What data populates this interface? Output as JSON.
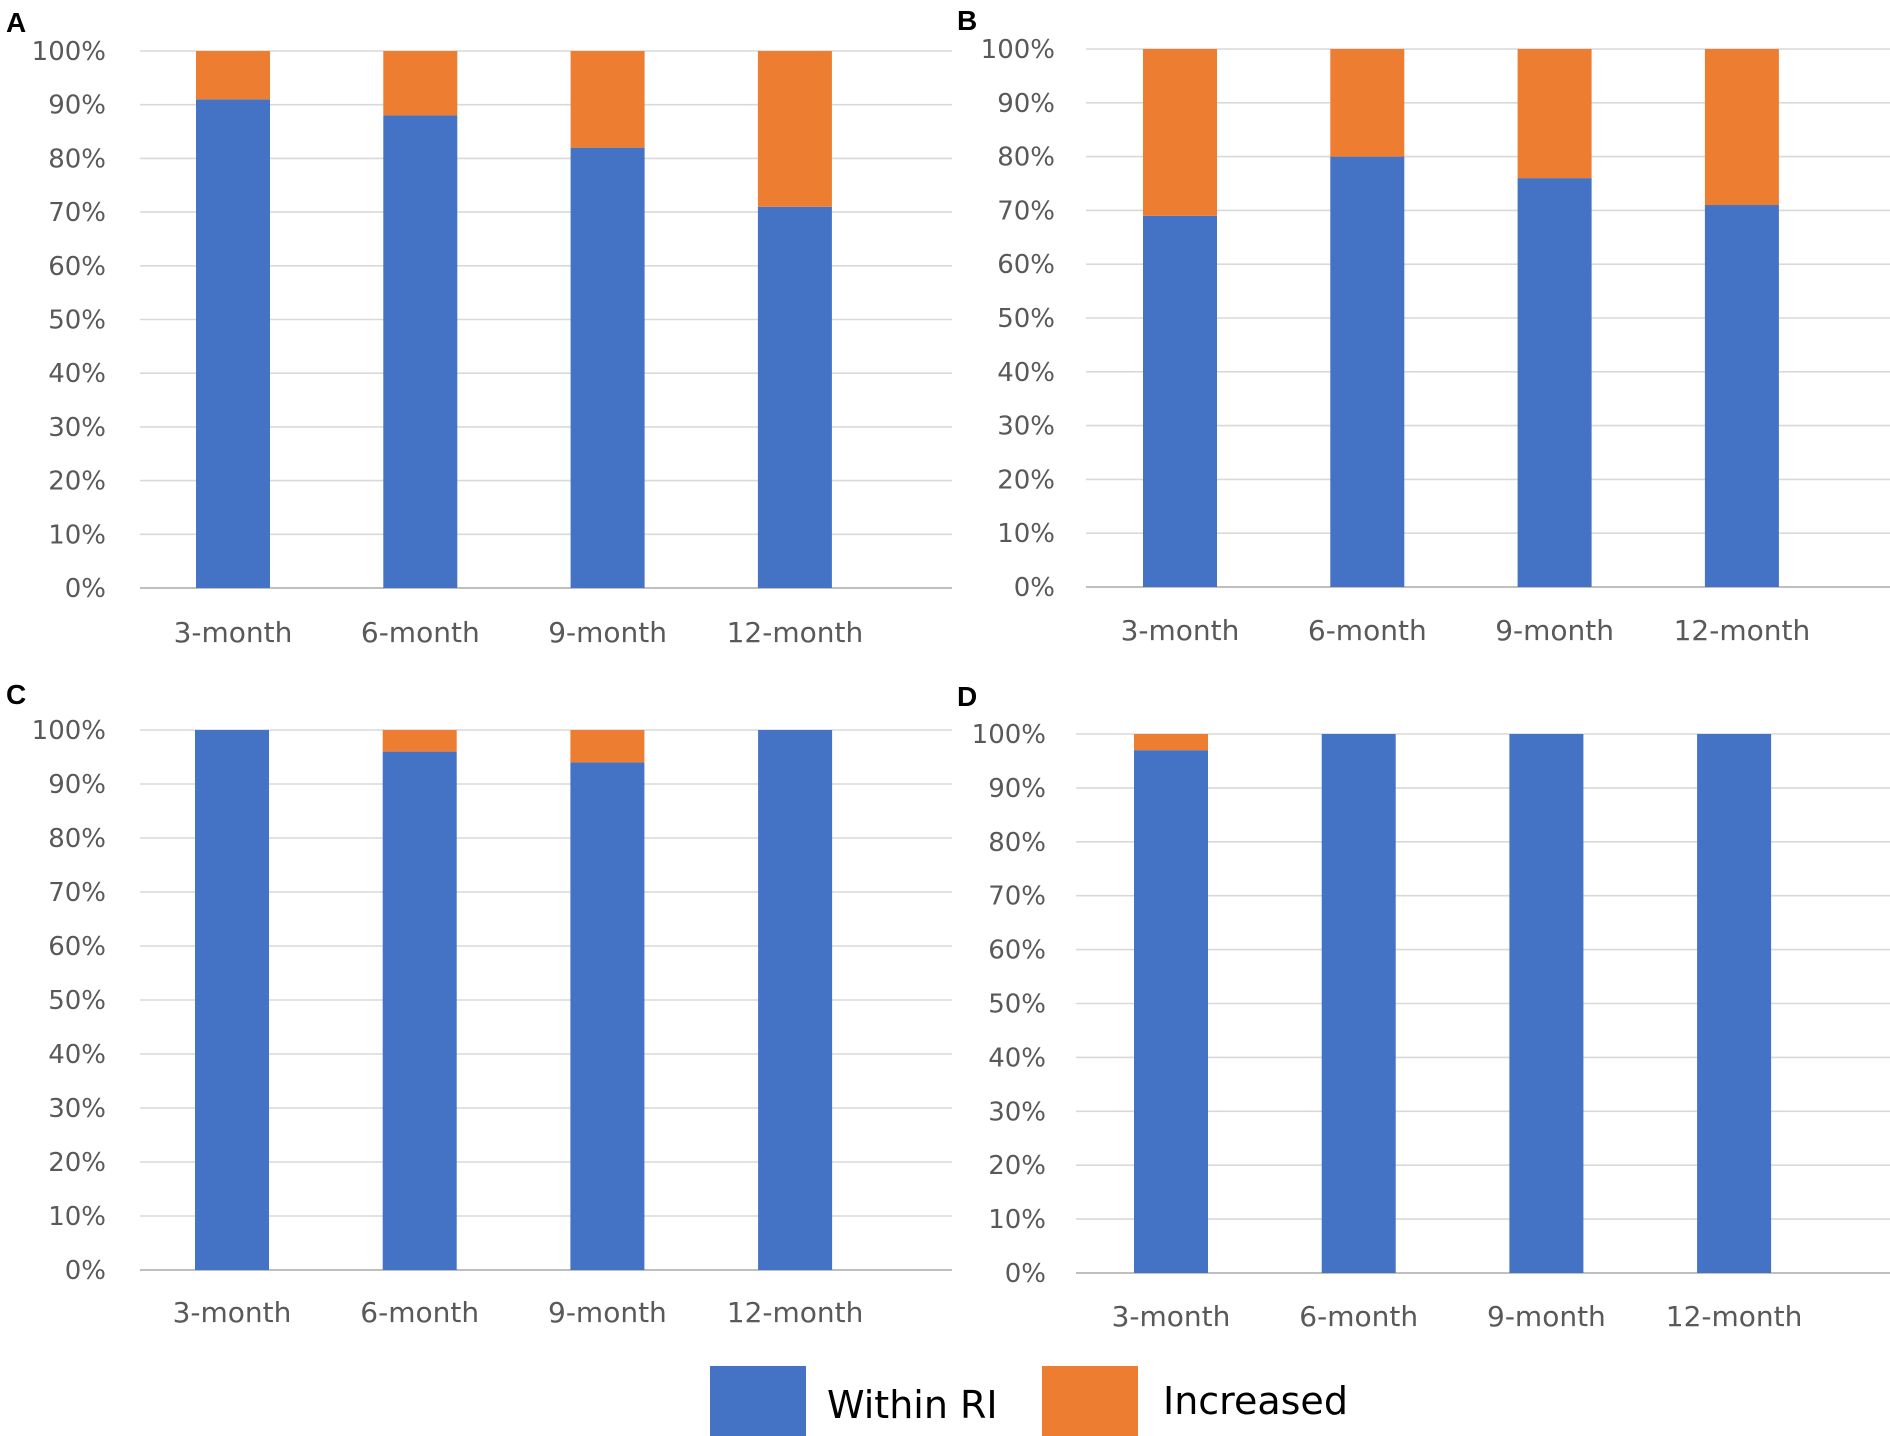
{
  "colors": {
    "within": "#4472C4",
    "increased": "#ED7D31",
    "grid": "#D9D9D9",
    "axis": "#BFBFBF",
    "tick_text": "#595959"
  },
  "legend": {
    "within_label": "Within RI",
    "increased_label": "Increased"
  },
  "chart_data": [
    {
      "panel": "A",
      "type": "bar",
      "stacked": true,
      "categories": [
        "3-month",
        "6-month",
        "9-month",
        "12-month"
      ],
      "series": [
        {
          "name": "Within RI",
          "values": [
            91,
            88,
            82,
            71
          ]
        },
        {
          "name": "Increased",
          "values": [
            9,
            12,
            18,
            29
          ]
        }
      ],
      "ylim": [
        0,
        100
      ],
      "yticks": [
        "0%",
        "10%",
        "20%",
        "30%",
        "40%",
        "50%",
        "60%",
        "70%",
        "80%",
        "90%",
        "100%"
      ],
      "grid": true,
      "legend": "bottom"
    },
    {
      "panel": "B",
      "type": "bar",
      "stacked": true,
      "categories": [
        "3-month",
        "6-month",
        "9-month",
        "12-month"
      ],
      "series": [
        {
          "name": "Within RI",
          "values": [
            69,
            80,
            76,
            71
          ]
        },
        {
          "name": "Increased",
          "values": [
            31,
            20,
            24,
            29
          ]
        }
      ],
      "ylim": [
        0,
        100
      ],
      "yticks": [
        "0%",
        "10%",
        "20%",
        "30%",
        "40%",
        "50%",
        "60%",
        "70%",
        "80%",
        "90%",
        "100%"
      ],
      "grid": true,
      "legend": "bottom"
    },
    {
      "panel": "C",
      "type": "bar",
      "stacked": true,
      "categories": [
        "3-month",
        "6-month",
        "9-month",
        "12-month"
      ],
      "series": [
        {
          "name": "Within RI",
          "values": [
            100,
            96,
            94,
            100
          ]
        },
        {
          "name": "Increased",
          "values": [
            0,
            4,
            6,
            0
          ]
        }
      ],
      "ylim": [
        0,
        100
      ],
      "yticks": [
        "0%",
        "10%",
        "20%",
        "30%",
        "40%",
        "50%",
        "60%",
        "70%",
        "80%",
        "90%",
        "100%"
      ],
      "grid": true,
      "legend": "bottom"
    },
    {
      "panel": "D",
      "type": "bar",
      "stacked": true,
      "categories": [
        "3-month",
        "6-month",
        "9-month",
        "12-month"
      ],
      "series": [
        {
          "name": "Within RI",
          "values": [
            97,
            100,
            100,
            100
          ]
        },
        {
          "name": "Increased",
          "values": [
            3,
            0,
            0,
            0
          ]
        }
      ],
      "ylim": [
        0,
        100
      ],
      "yticks": [
        "0%",
        "10%",
        "20%",
        "30%",
        "40%",
        "50%",
        "60%",
        "70%",
        "80%",
        "90%",
        "100%"
      ],
      "grid": true,
      "legend": "bottom"
    }
  ]
}
